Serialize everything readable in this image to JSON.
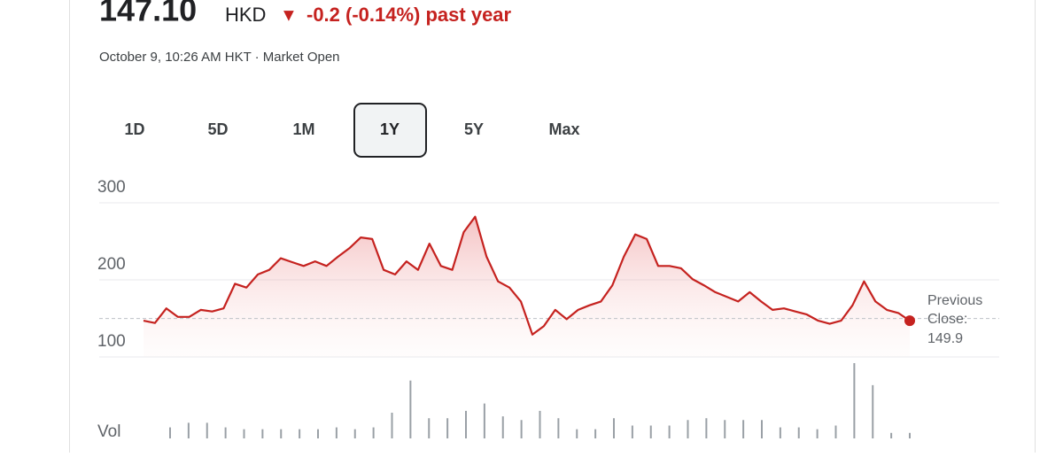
{
  "header": {
    "price": "147.10",
    "currency": "HKD",
    "arrow": "▼",
    "change": "-0.2 (-0.14%) past year",
    "timestamp": "October 9, 10:26 AM HKT · Market Open"
  },
  "ranges": [
    "1D",
    "5D",
    "1M",
    "1Y",
    "5Y",
    "Max"
  ],
  "selected_range": 3,
  "chart_data": {
    "type": "line",
    "ylim": [
      100,
      300
    ],
    "yticks": [
      100,
      200,
      300
    ],
    "grid": true,
    "series": [
      {
        "name": "Price",
        "color": "#c5221f",
        "values": [
          147,
          144,
          163,
          152,
          152,
          161,
          159,
          163,
          195,
          190,
          207,
          213,
          228,
          223,
          218,
          224,
          218,
          230,
          241,
          255,
          253,
          213,
          207,
          224,
          213,
          247,
          218,
          213,
          262,
          282,
          230,
          198,
          190,
          172,
          129,
          140,
          161,
          149,
          161,
          167,
          172,
          193,
          230,
          259,
          253,
          218,
          218,
          215,
          201,
          193,
          184,
          178,
          172,
          184,
          172,
          161,
          163,
          159,
          155,
          147,
          143,
          147,
          167,
          198,
          172,
          161,
          157,
          147
        ]
      }
    ],
    "reference": {
      "label": "Previous Close:",
      "value": 149.9
    },
    "volume_label": "Vol",
    "volume": [
      12,
      17,
      17,
      12,
      10,
      10,
      10,
      10,
      10,
      12,
      10,
      12,
      28,
      63,
      22,
      22,
      30,
      38,
      24,
      20,
      30,
      22,
      10,
      10,
      22,
      14,
      14,
      14,
      20,
      22,
      20,
      20,
      20,
      12,
      12,
      10,
      14,
      82,
      58,
      6,
      6
    ]
  }
}
